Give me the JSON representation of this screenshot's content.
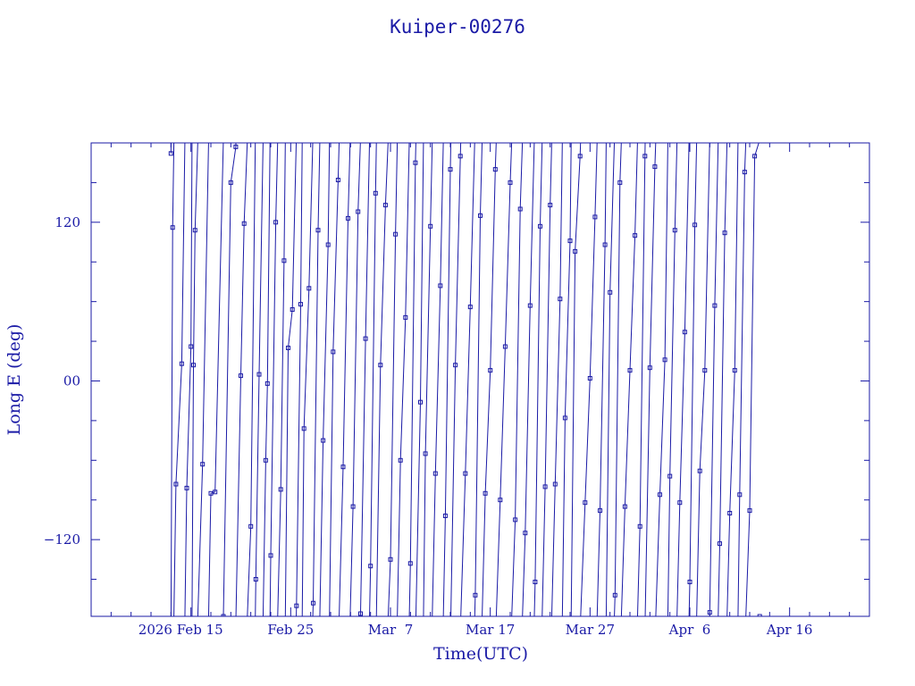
{
  "chart_data": {
    "type": "line",
    "title": "Kuiper-00276",
    "xlabel": "Time(UTC)",
    "ylabel": "Long E (deg)",
    "ylim": [
      -178,
      180
    ],
    "xlim": [
      "2026-02-05",
      "2026-04-24"
    ],
    "x_tick_labels": [
      "2026 Feb 15",
      "Feb 25",
      "Mar  7",
      "Mar 17",
      "Mar 27",
      "Apr  6",
      "Apr 16"
    ],
    "y_tick_labels": [
      "120",
      "00",
      "−120"
    ],
    "grid": false,
    "color": "#1a1aa6",
    "series": [
      {
        "values": [
          [
            "2026-02-13 00:00",
            172
          ],
          [
            "2026-02-13 04:00",
            116
          ],
          [
            "2026-02-13 12:00",
            -78
          ],
          [
            "2026-02-14 02:00",
            13
          ],
          [
            "2026-02-14 14:00",
            -81
          ],
          [
            "2026-02-15 00:00",
            26
          ],
          [
            "2026-02-15 06:00",
            12
          ],
          [
            "2026-02-15 10:00",
            114
          ],
          [
            "2026-02-16 04:00",
            -63
          ],
          [
            "2026-02-17 00:00",
            -85
          ],
          [
            "2026-02-17 10:00",
            -84
          ],
          [
            "2026-02-18 06:00",
            -178
          ],
          [
            "2026-02-19 00:00",
            150
          ],
          [
            "2026-02-19 12:00",
            177
          ],
          [
            "2026-02-20 00:00",
            4
          ],
          [
            "2026-02-20 08:00",
            119
          ],
          [
            "2026-02-21 00:00",
            -110
          ],
          [
            "2026-02-21 12:00",
            -150
          ],
          [
            "2026-02-21 20:00",
            5
          ],
          [
            "2026-02-22 12:00",
            -60
          ],
          [
            "2026-02-22 16:00",
            -2
          ],
          [
            "2026-02-23 00:00",
            -132
          ],
          [
            "2026-02-23 12:00",
            120
          ],
          [
            "2026-02-24 00:00",
            -82
          ],
          [
            "2026-02-24 08:00",
            91
          ],
          [
            "2026-02-24 18:00",
            25
          ],
          [
            "2026-02-25 04:00",
            54
          ],
          [
            "2026-02-25 14:00",
            -170
          ],
          [
            "2026-02-26 00:00",
            58
          ],
          [
            "2026-02-26 08:00",
            -36
          ],
          [
            "2026-02-26 20:00",
            70
          ],
          [
            "2026-02-27 06:00",
            -168
          ],
          [
            "2026-02-27 18:00",
            114
          ],
          [
            "2026-02-28 06:00",
            -45
          ],
          [
            "2026-02-28 18:00",
            103
          ],
          [
            "2026-03-01 06:00",
            22
          ],
          [
            "2026-03-01 18:00",
            152
          ],
          [
            "2026-03-02 06:00",
            -65
          ],
          [
            "2026-03-02 18:00",
            123
          ],
          [
            "2026-03-03 06:00",
            -95
          ],
          [
            "2026-03-03 18:00",
            128
          ],
          [
            "2026-03-04 00:00",
            -176
          ],
          [
            "2026-03-04 12:00",
            32
          ],
          [
            "2026-03-05 00:00",
            -140
          ],
          [
            "2026-03-05 12:00",
            142
          ],
          [
            "2026-03-06 00:00",
            12
          ],
          [
            "2026-03-06 12:00",
            133
          ],
          [
            "2026-03-07 00:00",
            -135
          ],
          [
            "2026-03-07 12:00",
            111
          ],
          [
            "2026-03-08 00:00",
            -60
          ],
          [
            "2026-03-08 12:00",
            48
          ],
          [
            "2026-03-09 00:00",
            -138
          ],
          [
            "2026-03-09 12:00",
            165
          ],
          [
            "2026-03-10 00:00",
            -16
          ],
          [
            "2026-03-10 12:00",
            -55
          ],
          [
            "2026-03-11 00:00",
            117
          ],
          [
            "2026-03-11 12:00",
            -70
          ],
          [
            "2026-03-12 00:00",
            72
          ],
          [
            "2026-03-12 12:00",
            -102
          ],
          [
            "2026-03-13 00:00",
            160
          ],
          [
            "2026-03-13 12:00",
            12
          ],
          [
            "2026-03-14 00:00",
            170
          ],
          [
            "2026-03-14 12:00",
            -70
          ],
          [
            "2026-03-15 00:00",
            56
          ],
          [
            "2026-03-15 12:00",
            -162
          ],
          [
            "2026-03-16 00:00",
            125
          ],
          [
            "2026-03-16 12:00",
            -85
          ],
          [
            "2026-03-17 00:00",
            8
          ],
          [
            "2026-03-17 12:00",
            160
          ],
          [
            "2026-03-18 00:00",
            -90
          ],
          [
            "2026-03-18 12:00",
            26
          ],
          [
            "2026-03-19 00:00",
            150
          ],
          [
            "2026-03-19 12:00",
            -105
          ],
          [
            "2026-03-20 00:00",
            130
          ],
          [
            "2026-03-20 12:00",
            -115
          ],
          [
            "2026-03-21 00:00",
            57
          ],
          [
            "2026-03-21 12:00",
            -152
          ],
          [
            "2026-03-22 00:00",
            117
          ],
          [
            "2026-03-22 12:00",
            -80
          ],
          [
            "2026-03-23 00:00",
            133
          ],
          [
            "2026-03-23 12:00",
            -78
          ],
          [
            "2026-03-24 00:00",
            62
          ],
          [
            "2026-03-24 12:00",
            -28
          ],
          [
            "2026-03-25 00:00",
            106
          ],
          [
            "2026-03-25 12:00",
            98
          ],
          [
            "2026-03-26 00:00",
            170
          ],
          [
            "2026-03-26 12:00",
            -92
          ],
          [
            "2026-03-27 00:00",
            2
          ],
          [
            "2026-03-27 12:00",
            124
          ],
          [
            "2026-03-28 00:00",
            -98
          ],
          [
            "2026-03-28 12:00",
            103
          ],
          [
            "2026-03-29 00:00",
            67
          ],
          [
            "2026-03-29 12:00",
            -162
          ],
          [
            "2026-03-30 00:00",
            150
          ],
          [
            "2026-03-30 12:00",
            -95
          ],
          [
            "2026-03-31 00:00",
            8
          ],
          [
            "2026-03-31 12:00",
            110
          ],
          [
            "2026-04-01 00:00",
            -110
          ],
          [
            "2026-04-01 12:00",
            170
          ],
          [
            "2026-04-02 00:00",
            10
          ],
          [
            "2026-04-02 12:00",
            162
          ],
          [
            "2026-04-03 00:00",
            -86
          ],
          [
            "2026-04-03 12:00",
            16
          ],
          [
            "2026-04-04 00:00",
            -72
          ],
          [
            "2026-04-04 12:00",
            114
          ],
          [
            "2026-04-05 00:00",
            -92
          ],
          [
            "2026-04-05 12:00",
            37
          ],
          [
            "2026-04-06 00:00",
            -152
          ],
          [
            "2026-04-06 12:00",
            118
          ],
          [
            "2026-04-07 00:00",
            -68
          ],
          [
            "2026-04-07 12:00",
            8
          ],
          [
            "2026-04-08 00:00",
            -175
          ],
          [
            "2026-04-08 12:00",
            57
          ],
          [
            "2026-04-09 00:00",
            -123
          ],
          [
            "2026-04-09 12:00",
            112
          ],
          [
            "2026-04-10 00:00",
            -100
          ],
          [
            "2026-04-10 12:00",
            8
          ],
          [
            "2026-04-11 00:00",
            -86
          ],
          [
            "2026-04-11 12:00",
            158
          ],
          [
            "2026-04-12 00:00",
            -98
          ],
          [
            "2026-04-12 12:00",
            170
          ],
          [
            "2026-04-13 00:00",
            -178
          ]
        ]
      }
    ]
  }
}
